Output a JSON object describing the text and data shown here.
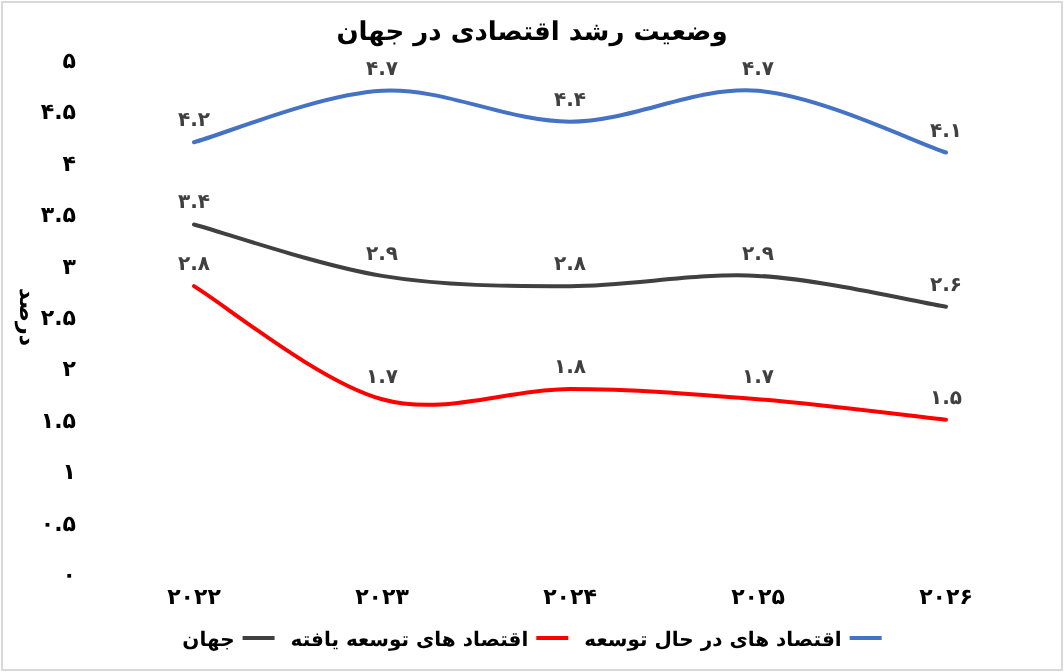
{
  "chart_data": {
    "type": "line",
    "title": "وضعیت رشد اقتصادی در جهان",
    "ylabel": "درصد",
    "categories": [
      "۲۰۲۲",
      "۲۰۲۳",
      "۲۰۲۴",
      "۲۰۲۵",
      "۲۰۲۶"
    ],
    "series": [
      {
        "name": "اقتصاد های در حال توسعه",
        "color": "#4472c4",
        "values": [
          4.2,
          4.7,
          4.4,
          4.7,
          4.1
        ],
        "value_labels": [
          "۴.۲",
          "۴.۷",
          "۴.۴",
          "۴.۷",
          "۴.۱"
        ]
      },
      {
        "name": "اقتصاد های توسعه یافته",
        "color": "#ff0000",
        "values": [
          2.8,
          1.7,
          1.8,
          1.7,
          1.5
        ],
        "value_labels": [
          "۲.۸",
          "۱.۷",
          "۱.۸",
          "۱.۷",
          "۱.۵"
        ]
      },
      {
        "name": "جهان",
        "color": "#404040",
        "values": [
          3.4,
          2.9,
          2.8,
          2.9,
          2.6
        ],
        "value_labels": [
          "۳.۴",
          "۲.۹",
          "۲.۸",
          "۲.۹",
          "۲.۶"
        ]
      }
    ],
    "ylim": [
      0,
      5
    ],
    "yticks": [
      {
        "value": 0,
        "label": "۰"
      },
      {
        "value": 0.5,
        "label": "۰.۵"
      },
      {
        "value": 1,
        "label": "۱"
      },
      {
        "value": 1.5,
        "label": "۱.۵"
      },
      {
        "value": 2,
        "label": "۲"
      },
      {
        "value": 2.5,
        "label": "۲.۵"
      },
      {
        "value": 3,
        "label": "۳"
      },
      {
        "value": 3.5,
        "label": "۳.۵"
      },
      {
        "value": 4,
        "label": "۴"
      },
      {
        "value": 4.5,
        "label": "۴.۵"
      },
      {
        "value": 5,
        "label": "۵"
      }
    ],
    "legend": "bottom"
  }
}
